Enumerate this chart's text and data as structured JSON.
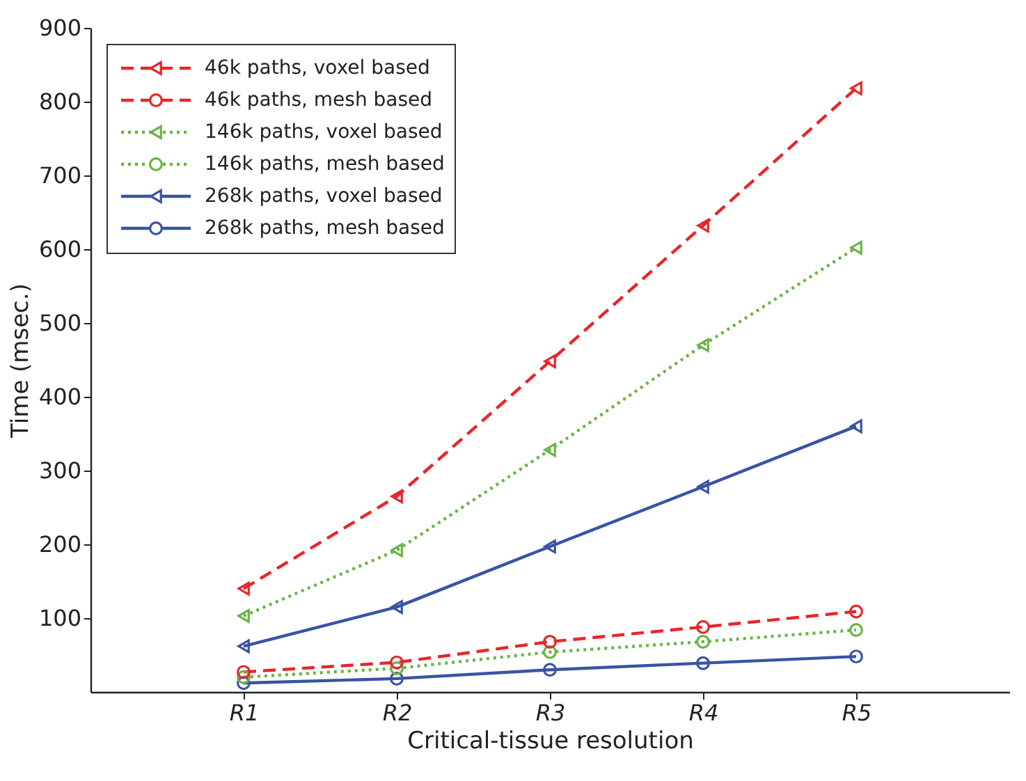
{
  "chart_data": {
    "type": "line",
    "xlabel": "Critical-tissue resolution",
    "ylabel": "Time (msec.)",
    "categories": [
      "R1",
      "R2",
      "R3",
      "R4",
      "R5"
    ],
    "ylim": [
      0,
      900
    ],
    "yticks": [
      100,
      200,
      300,
      400,
      500,
      600,
      700,
      800,
      900
    ],
    "grid": false,
    "legend": "top left",
    "series": [
      {
        "name": "46k paths, voxel based",
        "color": "#e8262a",
        "marker": "triangle",
        "line_style": "dashed",
        "values": [
          140,
          265,
          448,
          632,
          818
        ]
      },
      {
        "name": "46k paths, mesh based",
        "color": "#e8262a",
        "marker": "circle",
        "line_style": "dashed",
        "values": [
          27,
          40,
          68,
          88,
          109
        ]
      },
      {
        "name": "146k paths, voxel based",
        "color": "#6ab446",
        "marker": "triangle",
        "line_style": "dotted",
        "values": [
          103,
          192,
          328,
          470,
          602
        ]
      },
      {
        "name": "146k paths, mesh based",
        "color": "#6ab446",
        "marker": "circle",
        "line_style": "dotted",
        "values": [
          20,
          32,
          54,
          68,
          84
        ]
      },
      {
        "name": "268k paths, voxel based",
        "color": "#3a53a4",
        "marker": "triangle",
        "line_style": "solid",
        "values": [
          62,
          115,
          197,
          278,
          360
        ]
      },
      {
        "name": "268k paths, mesh based",
        "color": "#3a53a4",
        "marker": "circle",
        "line_style": "solid",
        "values": [
          12,
          18,
          30,
          39,
          48
        ]
      }
    ]
  }
}
